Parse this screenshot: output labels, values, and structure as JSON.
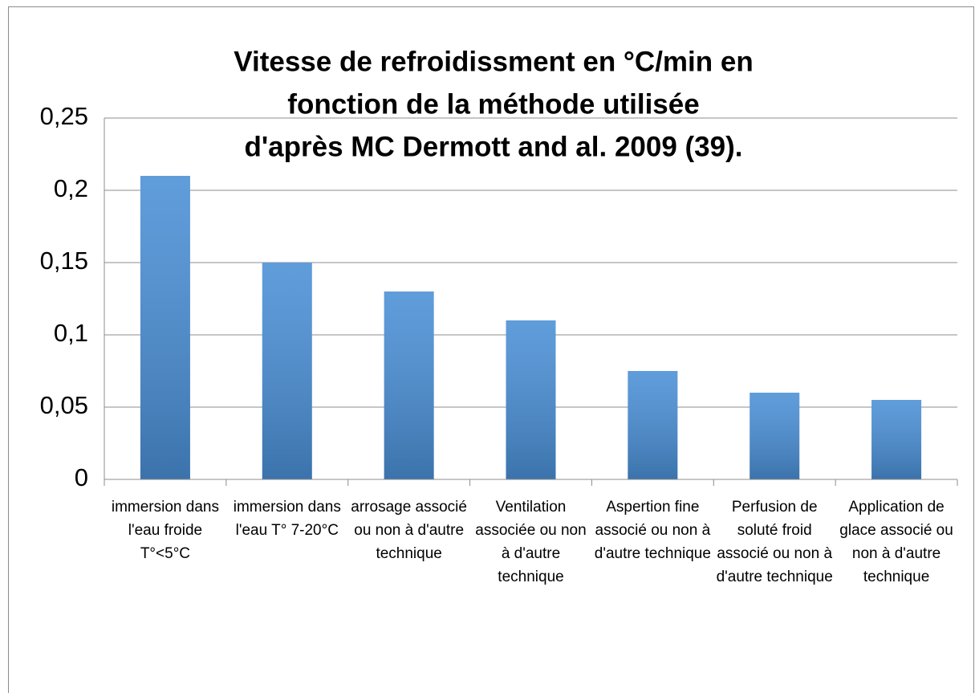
{
  "chart_data": {
    "type": "bar",
    "title": [
      "Vitesse de refroidissment en °C/min en",
      "fonction de la méthode utilisée",
      "d'après MC Dermott and al. 2009 (39)."
    ],
    "categories": [
      "immersion dans l'eau froide T°<5°C",
      "immersion dans l'eau T° 7-20°C",
      "arrosage associé ou non à d'autre technique",
      "Ventilation associée ou non à d'autre technique",
      "Aspertion fine associé ou non à d'autre technique",
      "Perfusion de soluté froid associé ou non à d'autre technique",
      "Application de glace associé ou non à d'autre technique"
    ],
    "values": [
      0.21,
      0.15,
      0.13,
      0.11,
      0.075,
      0.06,
      0.055
    ],
    "color": "#4a8fd6",
    "ylim": [
      0,
      0.25
    ],
    "yticks": [
      0,
      {
        "value": 0.05,
        "label": "0,05"
      },
      {
        "value": 0.1,
        "label": "0,1"
      },
      {
        "value": 0.15,
        "label": "0,15"
      },
      {
        "value": 0.2,
        "label": "0,2"
      },
      {
        "value": 0.25,
        "label": "0,25"
      }
    ],
    "grid": true
  }
}
